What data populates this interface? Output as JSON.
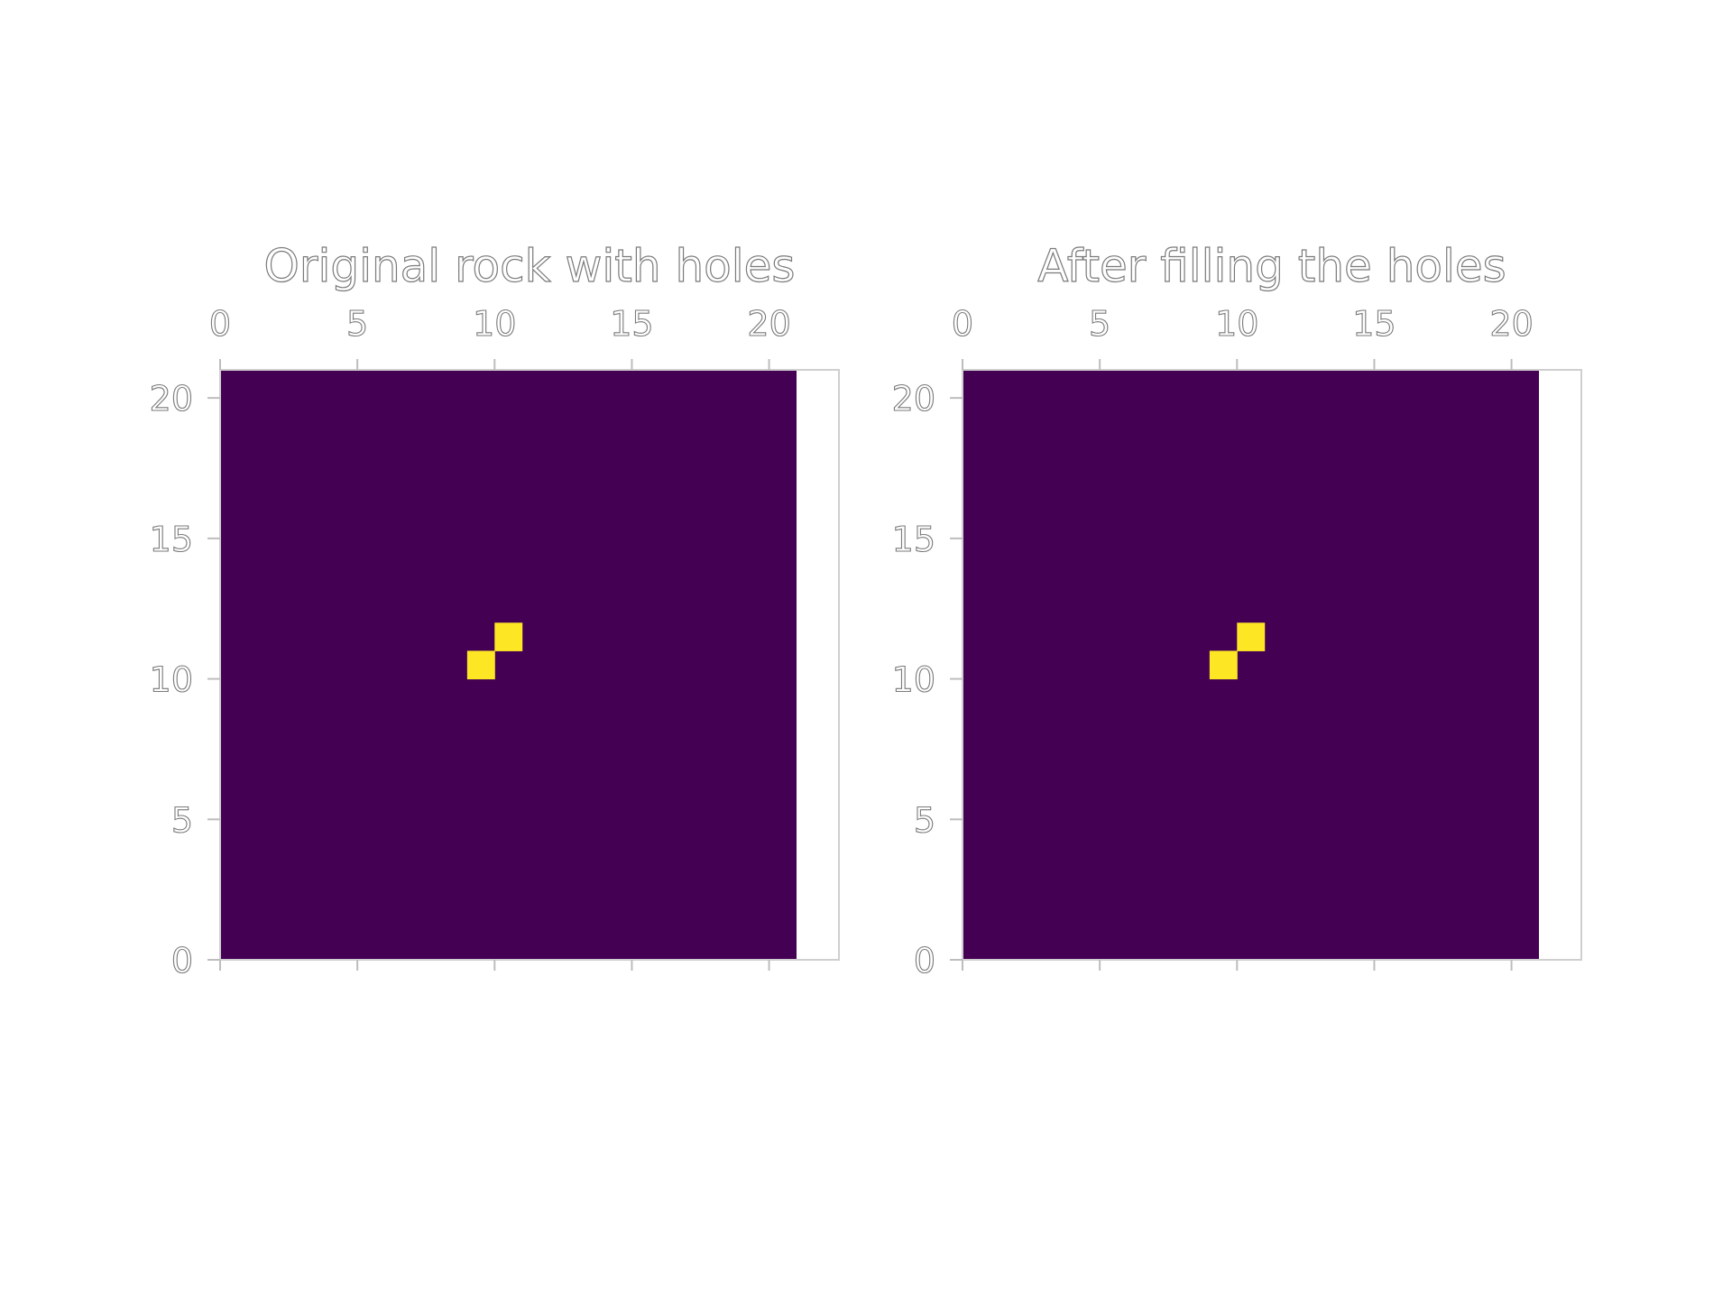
{
  "colors": {
    "rock": "#440154",
    "hole": "#fde725",
    "background": "#ffffff"
  },
  "chart_data": [
    {
      "type": "heatmap",
      "title": "Original rock with holes",
      "grid_size": 21,
      "xlim": [
        0,
        21
      ],
      "ylim": [
        0,
        21
      ],
      "xticks": [
        0,
        5,
        10,
        15,
        20
      ],
      "yticks": [
        0,
        5,
        10,
        15,
        20
      ],
      "x_tick_position": "top",
      "y_tick_position": "left",
      "background_value": 0,
      "cells": [
        {
          "x": 9,
          "y": 10,
          "value": 1
        },
        {
          "x": 10,
          "y": 11,
          "value": 1
        }
      ]
    },
    {
      "type": "heatmap",
      "title": "After filling the holes",
      "grid_size": 21,
      "xlim": [
        0,
        21
      ],
      "ylim": [
        0,
        21
      ],
      "xticks": [
        0,
        5,
        10,
        15,
        20
      ],
      "yticks": [
        0,
        5,
        10,
        15,
        20
      ],
      "x_tick_position": "top",
      "y_tick_position": "left",
      "background_value": 0,
      "cells": [
        {
          "x": 9,
          "y": 10,
          "value": 1
        },
        {
          "x": 10,
          "y": 11,
          "value": 1
        }
      ]
    }
  ]
}
